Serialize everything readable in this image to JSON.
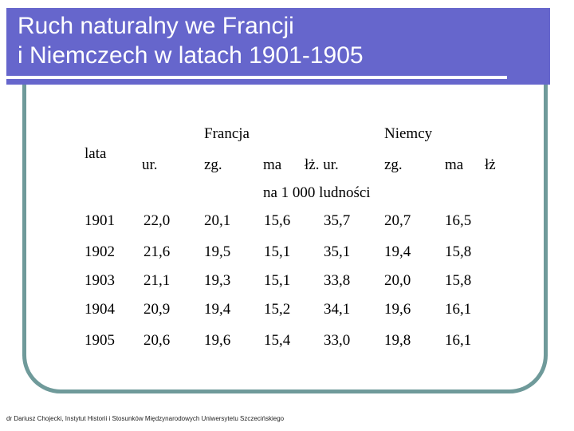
{
  "title": {
    "line1": "Ruch naturalny we Francji",
    "line2": "i Niemczech w latach 1901-1905"
  },
  "table": {
    "group_headers": [
      "Francja",
      "Niemcy"
    ],
    "year_header": "lata",
    "sub_headers": {
      "fr_ur": "ur.",
      "fr_zg": "zg.",
      "fr_ma": "ma",
      "fr_lz_ur": "łż. ur.",
      "de_zg": "zg.",
      "de_ma": "ma",
      "de_lz": "łż"
    },
    "unit_note": "na 1 000 ludności",
    "rows": [
      {
        "year": "1901",
        "v": [
          "22,0",
          "20,1",
          "15,6",
          "35,7",
          "20,7",
          "16,5"
        ]
      },
      {
        "year": "1902",
        "v": [
          "21,6",
          "19,5",
          "15,1",
          "35,1",
          "19,4",
          "15,8"
        ]
      },
      {
        "year": "1903",
        "v": [
          "21,1",
          "19,3",
          "15,1",
          "33,8",
          "20,0",
          "15,8"
        ]
      },
      {
        "year": "1904",
        "v": [
          "20,9",
          "19,4",
          "15,2",
          "34,1",
          "19,6",
          "16,1"
        ]
      },
      {
        "year": "1905",
        "v": [
          "20,6",
          "19,6",
          "15,4",
          "33,0",
          "19,8",
          "16,1"
        ]
      }
    ]
  },
  "footer": "dr Dariusz Chojecki, Instytut Historii i Stosunków Międzynarodowych Uniwersytetu Szczecińskiego"
}
